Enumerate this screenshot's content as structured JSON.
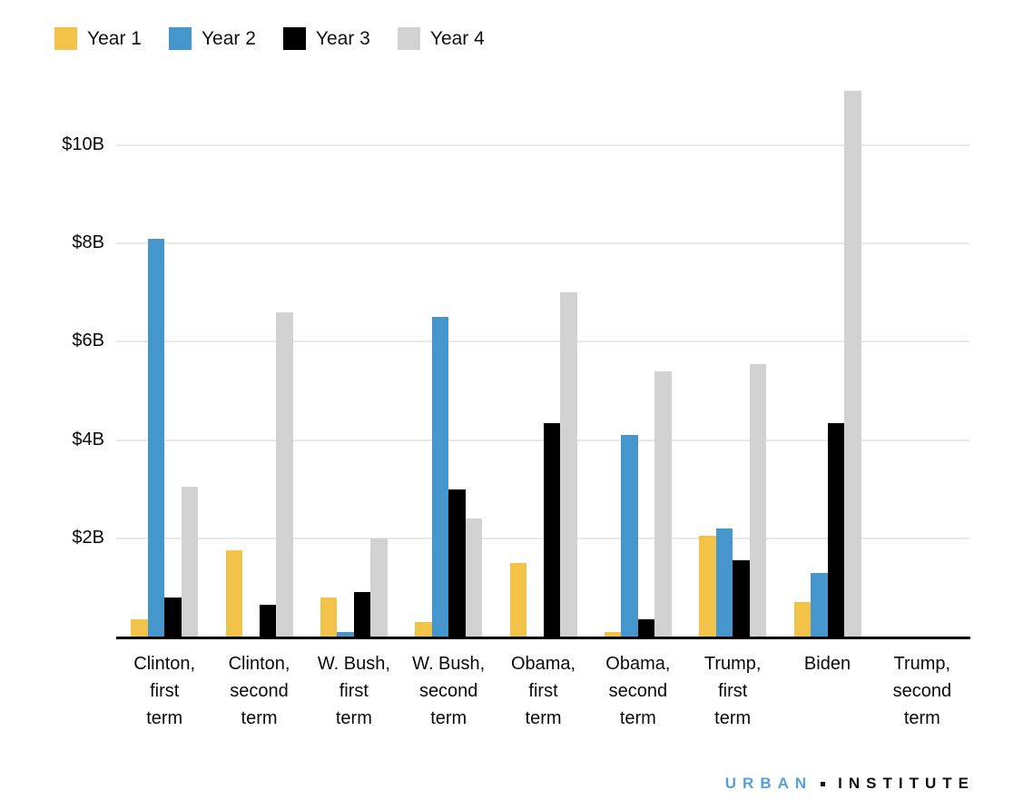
{
  "legend": {
    "items": [
      {
        "label": "Year 1",
        "color": "#F2C249"
      },
      {
        "label": "Year 2",
        "color": "#4696CE"
      },
      {
        "label": "Year 3",
        "color": "#000000"
      },
      {
        "label": "Year 4",
        "color": "#D2D2D2"
      }
    ]
  },
  "chart_data": {
    "type": "bar",
    "title": "",
    "categories": [
      "Clinton, first term",
      "Clinton, second term",
      "W. Bush, first term",
      "W. Bush, second term",
      "Obama, first term",
      "Obama, second term",
      "Trump, first term",
      "Biden",
      "Trump, second term"
    ],
    "category_lines": [
      [
        "Clinton,",
        "first",
        "term"
      ],
      [
        "Clinton,",
        "second",
        "term"
      ],
      [
        "W. Bush,",
        "first",
        "term"
      ],
      [
        "W. Bush,",
        "second",
        "term"
      ],
      [
        "Obama,",
        "first",
        "term"
      ],
      [
        "Obama,",
        "second",
        "term"
      ],
      [
        "Trump,",
        "first",
        "term"
      ],
      [
        "Biden"
      ],
      [
        "Trump,",
        "second",
        "term"
      ]
    ],
    "series": [
      {
        "name": "Year 1",
        "color": "#F2C249",
        "values": [
          0.35,
          1.75,
          0.8,
          0.3,
          1.5,
          0.1,
          2.05,
          0.7,
          0
        ]
      },
      {
        "name": "Year 2",
        "color": "#4696CE",
        "values": [
          8.1,
          0,
          0.1,
          6.5,
          0,
          4.1,
          2.2,
          1.3,
          0
        ]
      },
      {
        "name": "Year 3",
        "color": "#000000",
        "values": [
          0.8,
          0.65,
          0.9,
          3.0,
          4.35,
          0.35,
          1.55,
          4.35,
          0
        ]
      },
      {
        "name": "Year 4",
        "color": "#D2D2D2",
        "values": [
          3.05,
          6.6,
          2.0,
          2.4,
          7.0,
          5.4,
          5.55,
          11.1,
          0
        ]
      }
    ],
    "xlabel": "",
    "ylabel": "",
    "y_ticks": [
      "$2B",
      "$4B",
      "$6B",
      "$8B",
      "$10B"
    ],
    "y_tick_values": [
      2,
      4,
      6,
      8,
      10
    ],
    "ylim": [
      0,
      11.2
    ],
    "grid": true,
    "legend_position": "top-left",
    "axis_color": "#000000",
    "gridline_color": "#e8e8e8"
  },
  "footer": {
    "brand_left": "URBAN",
    "brand_right": "INSTITUTE",
    "brand_left_color": "#55A0DC",
    "brand_right_color": "#111111"
  }
}
